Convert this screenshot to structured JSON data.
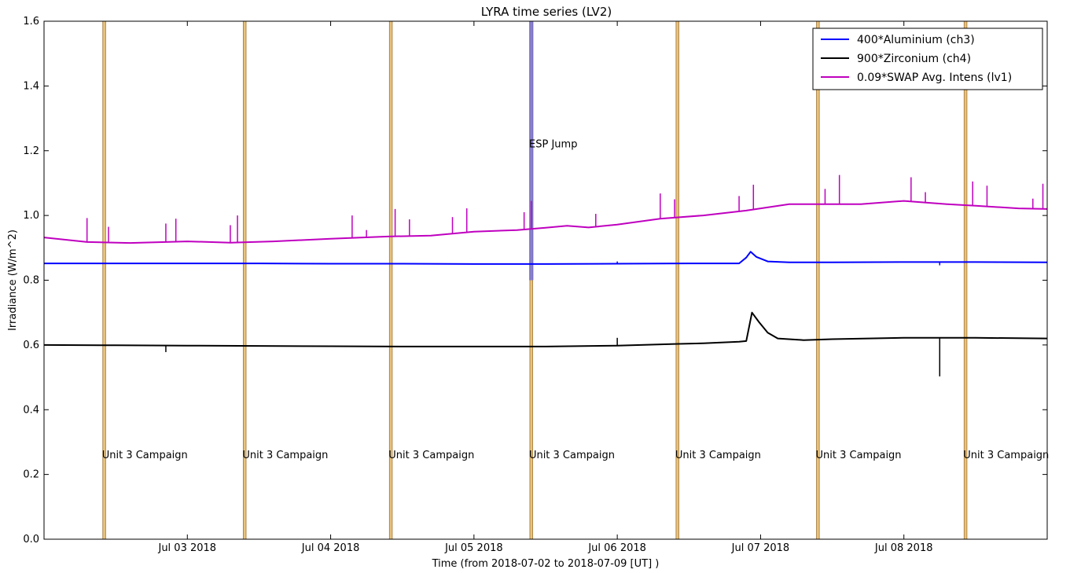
{
  "chart_data": {
    "type": "line",
    "title": "LYRA time series (LV2)",
    "xlabel": "Time (from 2018-07-02 to 2018-07-09 [UT] )",
    "ylabel": "Irradiance (W/m^2)",
    "x_unit": "days",
    "xlim": [
      0,
      7
    ],
    "ylim": [
      0,
      1.6
    ],
    "grid": false,
    "legend_position": "top-right",
    "x_ticks": [
      {
        "x": 1,
        "label": "Jul 03 2018"
      },
      {
        "x": 2,
        "label": "Jul 04 2018"
      },
      {
        "x": 3,
        "label": "Jul 05 2018"
      },
      {
        "x": 4,
        "label": "Jul 06 2018"
      },
      {
        "x": 5,
        "label": "Jul 07 2018"
      },
      {
        "x": 6,
        "label": "Jul 08 2018"
      }
    ],
    "y_ticks": [
      {
        "y": 0.0,
        "label": "0.0"
      },
      {
        "y": 0.2,
        "label": "0.2"
      },
      {
        "y": 0.4,
        "label": "0.4"
      },
      {
        "y": 0.6,
        "label": "0.6"
      },
      {
        "y": 0.8,
        "label": "0.8"
      },
      {
        "y": 1.0,
        "label": "1.0"
      },
      {
        "y": 1.2,
        "label": "1.2"
      },
      {
        "y": 1.4,
        "label": "1.4"
      },
      {
        "y": 1.6,
        "label": "1.6"
      }
    ],
    "series": [
      {
        "name": "400*Aluminium (ch3)",
        "color": "#0000ff",
        "points": [
          [
            0,
            0.852
          ],
          [
            0.5,
            0.852
          ],
          [
            1,
            0.852
          ],
          [
            1.5,
            0.852
          ],
          [
            2,
            0.851
          ],
          [
            2.5,
            0.851
          ],
          [
            3,
            0.85
          ],
          [
            3.5,
            0.85
          ],
          [
            4,
            0.851
          ],
          [
            4.5,
            0.852
          ],
          [
            4.85,
            0.852
          ],
          [
            4.9,
            0.87
          ],
          [
            4.93,
            0.888
          ],
          [
            4.97,
            0.872
          ],
          [
            5.05,
            0.858
          ],
          [
            5.2,
            0.855
          ],
          [
            5.5,
            0.855
          ],
          [
            6,
            0.856
          ],
          [
            6.5,
            0.856
          ],
          [
            7,
            0.855
          ]
        ],
        "spikes": [
          [
            4.0,
            0.858
          ],
          [
            6.25,
            0.846
          ]
        ]
      },
      {
        "name": "900*Zirconium (ch4)",
        "color": "#000000",
        "points": [
          [
            0,
            0.6
          ],
          [
            0.5,
            0.599
          ],
          [
            1,
            0.598
          ],
          [
            1.5,
            0.597
          ],
          [
            2,
            0.596
          ],
          [
            2.5,
            0.595
          ],
          [
            3,
            0.595
          ],
          [
            3.5,
            0.595
          ],
          [
            4,
            0.598
          ],
          [
            4.4,
            0.603
          ],
          [
            4.6,
            0.605
          ],
          [
            4.85,
            0.61
          ],
          [
            4.9,
            0.612
          ],
          [
            4.94,
            0.7
          ],
          [
            4.99,
            0.67
          ],
          [
            5.05,
            0.638
          ],
          [
            5.12,
            0.62
          ],
          [
            5.3,
            0.615
          ],
          [
            5.5,
            0.618
          ],
          [
            6,
            0.622
          ],
          [
            6.5,
            0.622
          ],
          [
            7,
            0.62
          ]
        ],
        "spikes": [
          [
            0.85,
            0.578
          ],
          [
            4.0,
            0.622
          ],
          [
            6.25,
            0.503
          ]
        ]
      },
      {
        "name": "0.09*SWAP Avg. Intens (lv1)",
        "color": "#bf00bf",
        "points": [
          [
            0,
            0.932
          ],
          [
            0.3,
            0.918
          ],
          [
            0.6,
            0.915
          ],
          [
            1,
            0.92
          ],
          [
            1.3,
            0.916
          ],
          [
            1.6,
            0.92
          ],
          [
            2,
            0.928
          ],
          [
            2.4,
            0.935
          ],
          [
            2.7,
            0.938
          ],
          [
            3,
            0.95
          ],
          [
            3.3,
            0.955
          ],
          [
            3.5,
            0.962
          ],
          [
            3.65,
            0.968
          ],
          [
            3.8,
            0.963
          ],
          [
            4,
            0.972
          ],
          [
            4.3,
            0.99
          ],
          [
            4.6,
            1.0
          ],
          [
            4.9,
            1.015
          ],
          [
            5.2,
            1.035
          ],
          [
            5.45,
            1.035
          ],
          [
            5.7,
            1.035
          ],
          [
            6,
            1.045
          ],
          [
            6.3,
            1.035
          ],
          [
            6.5,
            1.03
          ],
          [
            6.8,
            1.022
          ],
          [
            7,
            1.02
          ]
        ],
        "spikes": [
          [
            0.3,
            0.992
          ],
          [
            0.45,
            0.965
          ],
          [
            0.85,
            0.975
          ],
          [
            0.92,
            0.99
          ],
          [
            1.3,
            0.97
          ],
          [
            1.35,
            1.0
          ],
          [
            2.15,
            1.0
          ],
          [
            2.25,
            0.955
          ],
          [
            2.45,
            1.02
          ],
          [
            2.55,
            0.988
          ],
          [
            2.85,
            0.995
          ],
          [
            2.95,
            1.022
          ],
          [
            3.35,
            1.01
          ],
          [
            3.4,
            1.045
          ],
          [
            3.85,
            1.005
          ],
          [
            4.3,
            1.068
          ],
          [
            4.4,
            1.05
          ],
          [
            4.85,
            1.06
          ],
          [
            4.95,
            1.095
          ],
          [
            5.45,
            1.082
          ],
          [
            5.55,
            1.125
          ],
          [
            6.05,
            1.118
          ],
          [
            6.15,
            1.072
          ],
          [
            6.48,
            1.105
          ],
          [
            6.58,
            1.092
          ],
          [
            6.9,
            1.052
          ],
          [
            6.97,
            1.098
          ]
        ]
      }
    ],
    "campaign_bands": {
      "label": "Unit 3 Campaign",
      "color": "#e8c27a",
      "x_ranges": [
        [
          0.41,
          0.43
        ],
        [
          1.39,
          1.41
        ],
        [
          2.41,
          2.43
        ],
        [
          3.39,
          3.41
        ],
        [
          4.41,
          4.43
        ],
        [
          5.39,
          5.41
        ],
        [
          6.42,
          6.44
        ]
      ],
      "label_y": 0.25
    },
    "event_band": {
      "label": "ESP Jump",
      "color": "#6a6ae8",
      "x_range": [
        3.385,
        3.415
      ],
      "y_range": [
        0.8,
        1.6
      ],
      "label_y": 1.21
    }
  }
}
